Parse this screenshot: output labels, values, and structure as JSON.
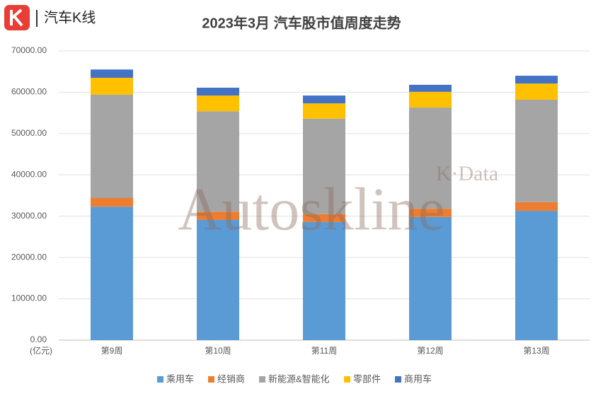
{
  "chart_data": {
    "type": "stacked_bar",
    "title": "2023年3月 汽车股市值周度走势",
    "brand": "汽车K线",
    "y_unit": "(亿元)",
    "annotations": [
      "Autoskline",
      "K·Data"
    ],
    "categories": [
      "第9周",
      "第10周",
      "第11周",
      "第12周",
      "第13周"
    ],
    "series": [
      {
        "name": "乘用车",
        "color": "#5b9bd5",
        "values": [
          32300,
          29100,
          28600,
          29800,
          31300
        ]
      },
      {
        "name": "经销商",
        "color": "#ed7d31",
        "values": [
          2100,
          2000,
          1900,
          2000,
          2100
        ]
      },
      {
        "name": "新能源&智能化",
        "color": "#a5a5a5",
        "values": [
          25000,
          24300,
          23100,
          24500,
          24800
        ]
      },
      {
        "name": "零部件",
        "color": "#ffc000",
        "values": [
          4100,
          3800,
          3700,
          3800,
          3900
        ]
      },
      {
        "name": "商用车",
        "color": "#4472c4",
        "values": [
          2000,
          1900,
          1900,
          1700,
          1900
        ]
      }
    ],
    "ylim": [
      0,
      70000
    ],
    "yticks": [
      {
        "value": 0,
        "label": "0.00"
      },
      {
        "value": 10000,
        "label": "10000.00"
      },
      {
        "value": 20000,
        "label": "20000.00"
      },
      {
        "value": 30000,
        "label": "30000.00"
      },
      {
        "value": 40000,
        "label": "40000.00"
      },
      {
        "value": 50000,
        "label": "50000.00"
      },
      {
        "value": 60000,
        "label": "60000.00"
      },
      {
        "value": 70000,
        "label": "70000.00"
      }
    ],
    "grid": true
  }
}
